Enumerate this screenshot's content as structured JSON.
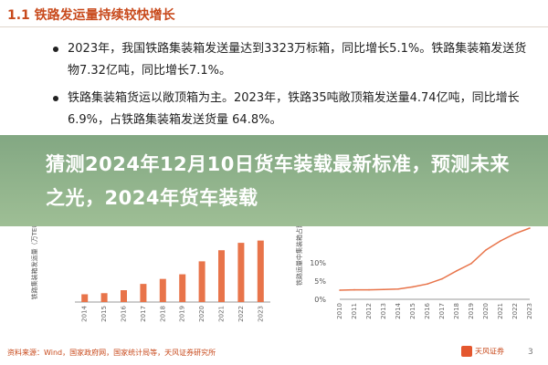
{
  "header": {
    "title": "1.1 铁路发运量持续较快增长"
  },
  "bullets": [
    "2023年，我国铁路集装箱发送量达到3323万标箱，同比增长5.1%。铁路集装箱发送货物7.32亿吨，同比增长7.1%。",
    "铁路集装箱货运以敞顶箱为主。2023年，铁路35吨敞顶箱发送量4.74亿吨，同比增长6.9%，占铁路集装箱发送货量 64.8%。"
  ],
  "banner": {
    "text": "猜测2024年12月10日货车装载最新标准，预测未来之光，2024年货车装载"
  },
  "chart_data": [
    {
      "type": "bar",
      "ylabel": "铁路集装箱发运量（万TEU）",
      "categories": [
        "2014",
        "2015",
        "2016",
        "2017",
        "2018",
        "2019",
        "2020",
        "2021",
        "2022",
        "2023"
      ],
      "values": [
        420,
        480,
        640,
        980,
        1250,
        1500,
        2200,
        2800,
        3200,
        3323
      ],
      "ylim": [
        0,
        3600
      ],
      "color": "#e8744a"
    },
    {
      "type": "line",
      "ylabel": "铁路运量中集装箱占比",
      "x": [
        "2010",
        "2011",
        "2012",
        "2013",
        "2014",
        "2015",
        "2016",
        "2017",
        "2018",
        "2019",
        "2020",
        "2021",
        "2022",
        "2023"
      ],
      "values": [
        2.5,
        2.6,
        2.6,
        2.7,
        2.8,
        3.4,
        4.2,
        5.6,
        7.8,
        9.8,
        13.5,
        16.0,
        18.0,
        19.5
      ],
      "yticks": [
        "0%",
        "5%",
        "10%"
      ],
      "ylim": [
        0,
        20
      ],
      "color": "#e8744a"
    }
  ],
  "footer": {
    "source": "资料来源：Wind，国家政府网，国家统计局等，天风证券研究所",
    "logo": "天风证券",
    "page": "3"
  }
}
